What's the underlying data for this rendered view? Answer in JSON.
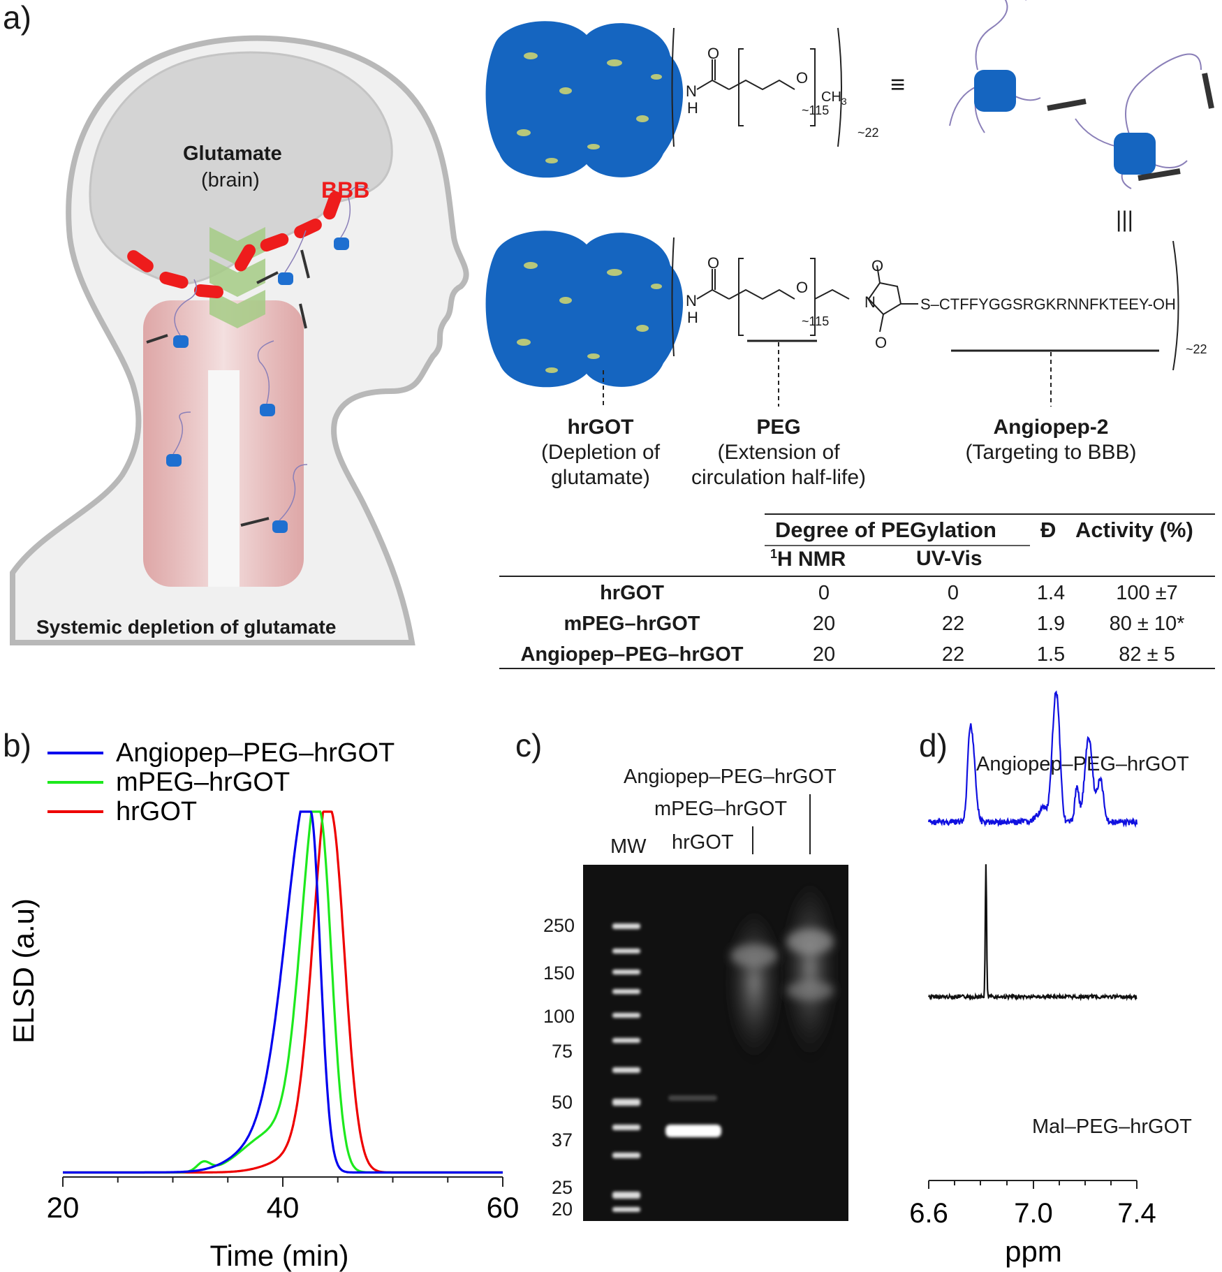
{
  "panel_labels": {
    "a": "a)",
    "b": "b)",
    "c": "c)",
    "d": "d)"
  },
  "head_diagram": {
    "glutamate": "Glutamate",
    "brain": "(brain)",
    "bbb": "BBB",
    "systemic": "Systemic depletion of glutamate"
  },
  "structures": {
    "top": {
      "n_label": "N",
      "h_label": "H",
      "o_label": "O",
      "ch3": "CH",
      "ch3_sub": "3",
      "repeat": "~115",
      "outer": "~22",
      "equiv": "≡",
      "three_bar": "|||"
    },
    "bottom": {
      "n_label": "N",
      "h_label": "H",
      "o_label": "O",
      "repeat": "~115",
      "outer": "~22",
      "peptide": "S–CTFFYGGSRGKRNNFKTEEY-OH",
      "imide_n": "N",
      "imide_o": "O"
    },
    "captions": [
      {
        "title": "hrGOT",
        "line1": "(Depletion of",
        "line2": "glutamate)"
      },
      {
        "title": "PEG",
        "line1": "(Extension of",
        "line2": "circulation half-life)"
      },
      {
        "title": "Angiopep-2",
        "line1": "(Targeting to BBB)",
        "line2": ""
      }
    ]
  },
  "table": {
    "group_header": "Degree of PEGylation",
    "col_nmr_sup": "1",
    "col_nmr": "H NMR",
    "col_uv": "UV-Vis",
    "col_d": "Đ",
    "col_activity": "Activity (%)",
    "rows": [
      {
        "name": "hrGOT",
        "nmr": "0",
        "uv": "0",
        "d": "1.4",
        "activity": "100 ±7"
      },
      {
        "name": "mPEG–hrGOT",
        "nmr": "20",
        "uv": "22",
        "d": "1.9",
        "activity": "80 ± 10*"
      },
      {
        "name": "Angiopep–PEG–hrGOT",
        "nmr": "20",
        "uv": "22",
        "d": "1.5",
        "activity": "82 ± 5"
      }
    ]
  },
  "gel": {
    "mw_header": "MW",
    "lane_labels": [
      "Angiopep–PEG–hrGOT",
      "mPEG–hrGOT",
      "hrGOT"
    ],
    "markers": [
      "250",
      "150",
      "100",
      "75",
      "50",
      "37",
      "25",
      "20"
    ]
  },
  "nmr": {
    "top_label": "Angiopep–PEG–hrGOT",
    "bottom_label": "Mal–PEG–hrGOT",
    "xlabel": "ppm",
    "ticks": [
      "6.6",
      "7.0",
      "7.4"
    ]
  },
  "chart_data": {
    "type": "line",
    "title": "",
    "xlabel": "Time (min)",
    "ylabel": "ELSD (a.u)",
    "xlim": [
      20,
      60
    ],
    "ylim": [
      0,
      1.05
    ],
    "xticks": [
      20,
      40,
      60
    ],
    "legend_position": "top-left",
    "series": [
      {
        "name": "Angiopep–PEG–hrGOT",
        "color": "#0000ee",
        "peak_x": 42.5,
        "width_left": 2.2,
        "width_right": 0.9,
        "shoulder_x": 38.0,
        "shoulder_h": 0.06,
        "bump_x": 0,
        "bump_h": 0
      },
      {
        "name": "mPEG–hrGOT",
        "color": "#1de91d",
        "peak_x": 43.3,
        "width_left": 1.6,
        "width_right": 1.1,
        "shoulder_x": 38.8,
        "shoulder_h": 0.1,
        "bump_x": 32.8,
        "bump_h": 0.025
      },
      {
        "name": "hrGOT",
        "color": "#ee0000",
        "peak_x": 44.3,
        "width_left": 1.5,
        "width_right": 1.3,
        "shoulder_x": 41.6,
        "shoulder_h": 0.04,
        "bump_x": 0,
        "bump_h": 0
      }
    ]
  }
}
